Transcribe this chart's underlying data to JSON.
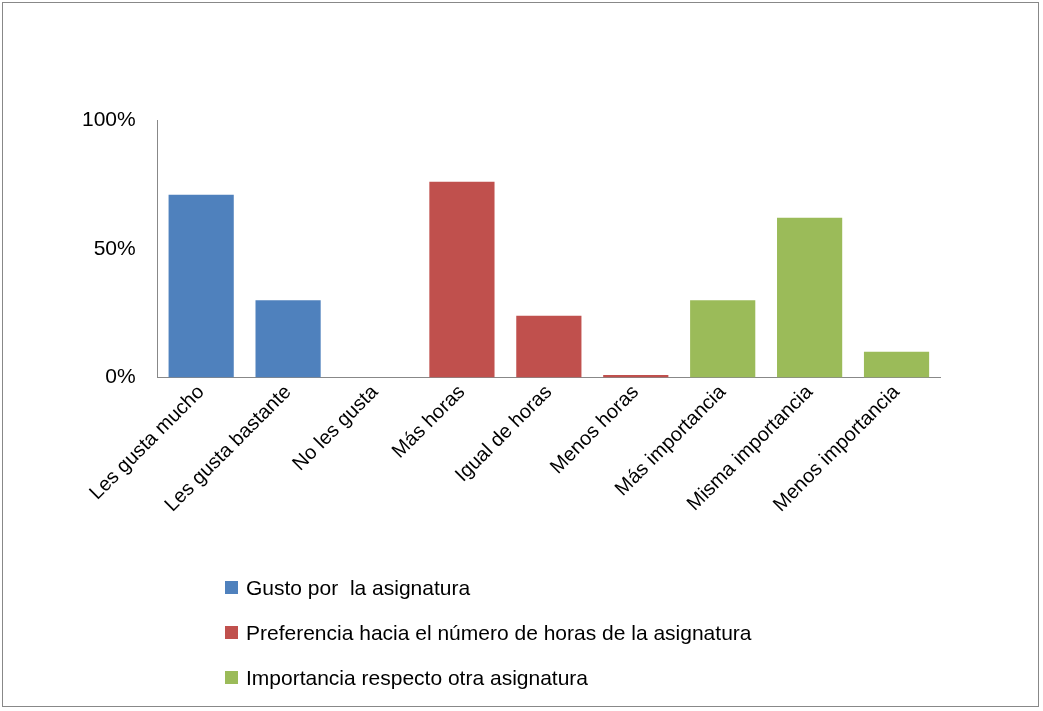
{
  "chart_data": {
    "type": "bar",
    "categories": [
      "Les gusta mucho",
      "Les gusta bastante",
      "No les gusta",
      "Más horas",
      "Igual de horas",
      "Menos horas",
      "Más importancia",
      "Misma importancia",
      "Menos importancia"
    ],
    "series": [
      {
        "name": "Gusto por  la asignatura",
        "color": "#4f81bd",
        "values": [
          71,
          30,
          0,
          null,
          null,
          null,
          null,
          null,
          null
        ]
      },
      {
        "name": "Preferencia hacia el número de horas de la asignatura",
        "color": "#c0504d",
        "values": [
          null,
          null,
          null,
          76,
          24,
          1,
          null,
          null,
          null
        ]
      },
      {
        "name": "Importancia respecto otra asignatura",
        "color": "#9bbb59",
        "values": [
          null,
          null,
          null,
          null,
          null,
          null,
          30,
          62,
          10
        ]
      }
    ],
    "ylim": [
      0,
      100
    ],
    "yticks": [
      {
        "value": 0,
        "label": "0%"
      },
      {
        "value": 50,
        "label": "50%"
      },
      {
        "value": 100,
        "label": "100%"
      }
    ],
    "grid": false,
    "legend": "bottom"
  }
}
